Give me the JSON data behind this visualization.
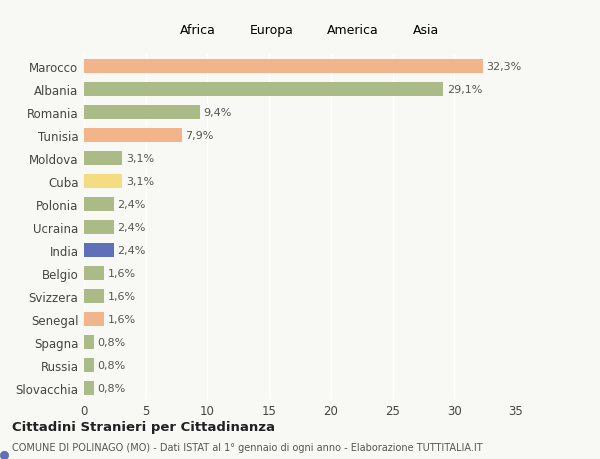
{
  "countries": [
    "Marocco",
    "Albania",
    "Romania",
    "Tunisia",
    "Moldova",
    "Cuba",
    "Polonia",
    "Ucraina",
    "India",
    "Belgio",
    "Svizzera",
    "Senegal",
    "Spagna",
    "Russia",
    "Slovacchia"
  ],
  "values": [
    32.3,
    29.1,
    9.4,
    7.9,
    3.1,
    3.1,
    2.4,
    2.4,
    2.4,
    1.6,
    1.6,
    1.6,
    0.8,
    0.8,
    0.8
  ],
  "labels": [
    "32,3%",
    "29,1%",
    "9,4%",
    "7,9%",
    "3,1%",
    "3,1%",
    "2,4%",
    "2,4%",
    "2,4%",
    "1,6%",
    "1,6%",
    "1,6%",
    "0,8%",
    "0,8%",
    "0,8%"
  ],
  "colors": [
    "#F2B48A",
    "#AABB88",
    "#AABB88",
    "#F2B48A",
    "#AABB88",
    "#F5DC80",
    "#AABB88",
    "#AABB88",
    "#6070B8",
    "#AABB88",
    "#AABB88",
    "#F2B48A",
    "#AABB88",
    "#AABB88",
    "#AABB88"
  ],
  "legend_labels": [
    "Africa",
    "Europa",
    "America",
    "Asia"
  ],
  "legend_colors": [
    "#F2B48A",
    "#AABB88",
    "#F5DC80",
    "#6070B8"
  ],
  "xlim": [
    0,
    35
  ],
  "xticks": [
    0,
    5,
    10,
    15,
    20,
    25,
    30,
    35
  ],
  "title": "Cittadini Stranieri per Cittadinanza",
  "subtitle": "COMUNE DI POLINAGO (MO) - Dati ISTAT al 1° gennaio di ogni anno - Elaborazione TUTTITALIA.IT",
  "bg_color": "#f8f8f4",
  "bar_height": 0.62,
  "label_fontsize": 8,
  "tick_fontsize": 8.5,
  "legend_fontsize": 9
}
